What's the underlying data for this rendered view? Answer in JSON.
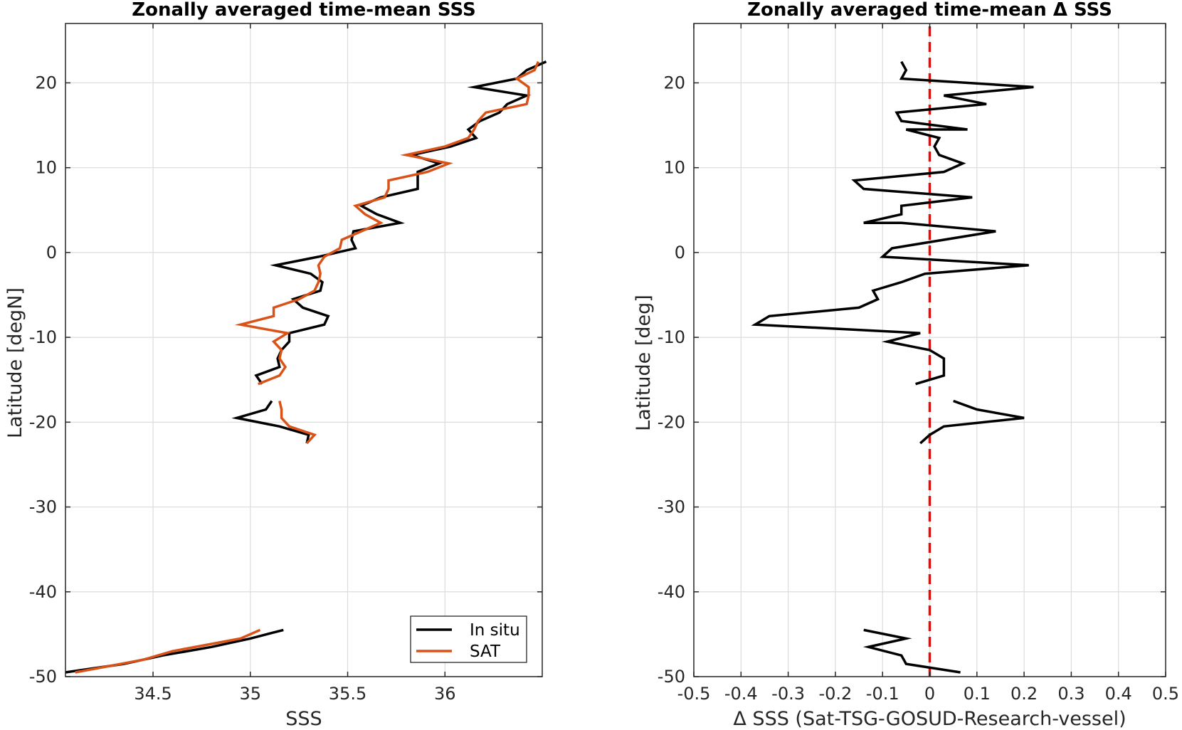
{
  "chart_data": [
    {
      "type": "line",
      "title": "Zonally averaged time-mean SSS",
      "xlabel": "SSS",
      "ylabel": "Latitude [degN]",
      "xlim": [
        34.05,
        36.5
      ],
      "ylim": [
        -50,
        27
      ],
      "xticks": [
        34.5,
        35,
        35.5,
        36
      ],
      "xtick_labels": [
        "34.5",
        "35",
        "35.5",
        "36"
      ],
      "yticks": [
        -50,
        -40,
        -30,
        -20,
        -10,
        0,
        10,
        20
      ],
      "ytick_labels": [
        "-50",
        "-40",
        "-30",
        "-20",
        "-10",
        "0",
        "10",
        "20"
      ],
      "grid": true,
      "legend": "bottom-right",
      "series": [
        {
          "name": "In situ",
          "color": "#000000",
          "segments": [
            [
              [
                34.05,
                -49.5
              ],
              [
                34.35,
                -48.5
              ],
              [
                34.55,
                -47.5
              ],
              [
                34.8,
                -46.5
              ],
              [
                35.0,
                -45.5
              ],
              [
                35.17,
                -44.5
              ]
            ],
            [
              [
                35.29,
                -22.5
              ],
              [
                35.3,
                -21.5
              ],
              [
                35.15,
                -20.5
              ],
              [
                34.93,
                -19.5
              ],
              [
                35.08,
                -18.5
              ],
              [
                35.11,
                -17.5
              ]
            ],
            [
              [
                35.06,
                -15.5
              ],
              [
                35.03,
                -14.5
              ],
              [
                35.15,
                -13.5
              ],
              [
                35.14,
                -12.5
              ],
              [
                35.16,
                -11.5
              ],
              [
                35.2,
                -10.5
              ],
              [
                35.2,
                -9.5
              ],
              [
                35.38,
                -8.5
              ],
              [
                35.4,
                -7.5
              ],
              [
                35.27,
                -6.5
              ],
              [
                35.22,
                -5.5
              ],
              [
                35.36,
                -4.5
              ],
              [
                35.37,
                -3.5
              ],
              [
                35.31,
                -2.5
              ],
              [
                35.13,
                -1.5
              ],
              [
                35.35,
                -0.5
              ],
              [
                35.54,
                0.5
              ],
              [
                35.52,
                1.5
              ],
              [
                35.53,
                2.5
              ],
              [
                35.77,
                3.5
              ],
              [
                35.65,
                4.5
              ],
              [
                35.57,
                5.5
              ],
              [
                35.67,
                6.5
              ],
              [
                35.86,
                7.5
              ],
              [
                35.86,
                8.5
              ],
              [
                35.86,
                9.5
              ],
              [
                35.97,
                10.5
              ],
              [
                35.83,
                11.5
              ],
              [
                36.03,
                12.5
              ],
              [
                36.16,
                13.5
              ],
              [
                36.12,
                14.5
              ],
              [
                36.18,
                15.5
              ],
              [
                36.28,
                16.5
              ],
              [
                36.32,
                17.5
              ],
              [
                36.42,
                18.5
              ],
              [
                36.15,
                19.5
              ],
              [
                36.37,
                20.5
              ],
              [
                36.42,
                21.5
              ],
              [
                36.52,
                22.5
              ]
            ]
          ]
        },
        {
          "name": "SAT",
          "color": "#D95319",
          "segments": [
            [
              [
                34.1,
                -49.5
              ],
              [
                34.45,
                -48.0
              ],
              [
                34.6,
                -47.0
              ],
              [
                34.95,
                -45.5
              ],
              [
                35.05,
                -44.5
              ]
            ],
            [
              [
                35.29,
                -22.5
              ],
              [
                35.33,
                -21.5
              ],
              [
                35.2,
                -20.5
              ],
              [
                35.16,
                -19.5
              ],
              [
                35.16,
                -18.5
              ],
              [
                35.15,
                -17.5
              ]
            ],
            [
              [
                35.04,
                -15.5
              ],
              [
                35.15,
                -14.5
              ],
              [
                35.18,
                -13.5
              ],
              [
                35.15,
                -12.5
              ],
              [
                35.16,
                -11.5
              ],
              [
                35.12,
                -10.5
              ],
              [
                35.19,
                -9.5
              ],
              [
                34.95,
                -8.5
              ],
              [
                35.12,
                -7.5
              ],
              [
                35.12,
                -6.5
              ],
              [
                35.25,
                -5.5
              ],
              [
                35.33,
                -4.5
              ],
              [
                35.35,
                -3.5
              ],
              [
                35.36,
                -2.5
              ],
              [
                35.35,
                -1.5
              ],
              [
                35.38,
                -0.5
              ],
              [
                35.46,
                0.5
              ],
              [
                35.47,
                1.5
              ],
              [
                35.57,
                2.5
              ],
              [
                35.67,
                3.5
              ],
              [
                35.59,
                4.5
              ],
              [
                35.54,
                5.5
              ],
              [
                35.69,
                6.5
              ],
              [
                35.71,
                7.5
              ],
              [
                35.71,
                8.5
              ],
              [
                35.91,
                9.5
              ],
              [
                36.02,
                10.5
              ],
              [
                35.8,
                11.5
              ],
              [
                36.0,
                12.5
              ],
              [
                36.12,
                13.5
              ],
              [
                36.15,
                14.5
              ],
              [
                36.17,
                15.5
              ],
              [
                36.21,
                16.5
              ],
              [
                36.42,
                17.5
              ],
              [
                36.43,
                18.5
              ],
              [
                36.43,
                19.5
              ],
              [
                36.37,
                20.5
              ],
              [
                36.46,
                21.5
              ],
              [
                36.48,
                22.5
              ]
            ]
          ]
        }
      ]
    },
    {
      "type": "line",
      "title": "Zonally averaged time-mean Δ SSS",
      "xlabel": "Δ SSS (Sat-TSG-GOSUD-Research-vessel)",
      "ylabel": "Latitude [deg]",
      "xlim": [
        -0.5,
        0.5
      ],
      "ylim": [
        -50,
        27
      ],
      "xticks": [
        -0.5,
        -0.4,
        -0.3,
        -0.2,
        -0.1,
        0,
        0.1,
        0.2,
        0.3,
        0.4,
        0.5
      ],
      "xtick_labels": [
        "-0.5",
        "-0.4",
        "-0.3",
        "-0.2",
        "-0.1",
        "0",
        "0.1",
        "0.2",
        "0.3",
        "0.4",
        "0.5"
      ],
      "yticks": [
        -50,
        -40,
        -30,
        -20,
        -10,
        0,
        10,
        20
      ],
      "ytick_labels": [
        "-50",
        "-40",
        "-30",
        "-20",
        "-10",
        "0",
        "10",
        "20"
      ],
      "grid": true,
      "reference_line": {
        "x": 0,
        "color": "#ff0000",
        "style": "dashed"
      },
      "series": [
        {
          "color": "#000000",
          "segments": [
            [
              [
                0.065,
                -49.5
              ],
              [
                -0.05,
                -48.5
              ],
              [
                -0.06,
                -47.5
              ],
              [
                -0.13,
                -46.5
              ],
              [
                -0.05,
                -45.5
              ],
              [
                -0.14,
                -44.5
              ]
            ],
            [
              [
                -0.02,
                -22.5
              ],
              [
                0.0,
                -21.5
              ],
              [
                0.03,
                -20.5
              ],
              [
                0.2,
                -19.5
              ],
              [
                0.1,
                -18.5
              ],
              [
                0.05,
                -17.5
              ]
            ],
            [
              [
                -0.03,
                -15.5
              ],
              [
                0.03,
                -14.5
              ],
              [
                0.03,
                -13.5
              ],
              [
                0.03,
                -12.5
              ],
              [
                0.0,
                -11.5
              ],
              [
                -0.09,
                -10.5
              ],
              [
                -0.02,
                -9.5
              ],
              [
                -0.37,
                -8.5
              ],
              [
                -0.34,
                -7.5
              ],
              [
                -0.15,
                -6.5
              ],
              [
                -0.11,
                -5.5
              ],
              [
                -0.12,
                -4.5
              ],
              [
                -0.06,
                -3.5
              ],
              [
                -0.01,
                -2.5
              ],
              [
                0.21,
                -1.5
              ],
              [
                -0.1,
                -0.5
              ],
              [
                -0.08,
                0.5
              ],
              [
                0.14,
                2.5
              ],
              [
                -0.06,
                3.5
              ],
              [
                -0.14,
                3.5
              ],
              [
                -0.06,
                4.5
              ],
              [
                -0.06,
                5.5
              ],
              [
                0.09,
                6.5
              ],
              [
                -0.14,
                7.5
              ],
              [
                -0.16,
                8.5
              ],
              [
                0.03,
                9.5
              ],
              [
                0.07,
                10.5
              ],
              [
                0.02,
                11.5
              ],
              [
                0.01,
                12.5
              ],
              [
                0.02,
                13.5
              ],
              [
                -0.05,
                14.5
              ],
              [
                0.08,
                14.5
              ],
              [
                -0.06,
                15.5
              ],
              [
                -0.07,
                16.5
              ],
              [
                0.12,
                17.5
              ],
              [
                0.03,
                18.5
              ],
              [
                0.22,
                19.5
              ],
              [
                -0.06,
                20.5
              ],
              [
                -0.05,
                21.5
              ],
              [
                -0.06,
                22.5
              ]
            ]
          ]
        }
      ]
    }
  ],
  "legend": {
    "items": [
      {
        "label": "In situ",
        "color": "#000000"
      },
      {
        "label": "SAT",
        "color": "#D95319"
      }
    ]
  }
}
